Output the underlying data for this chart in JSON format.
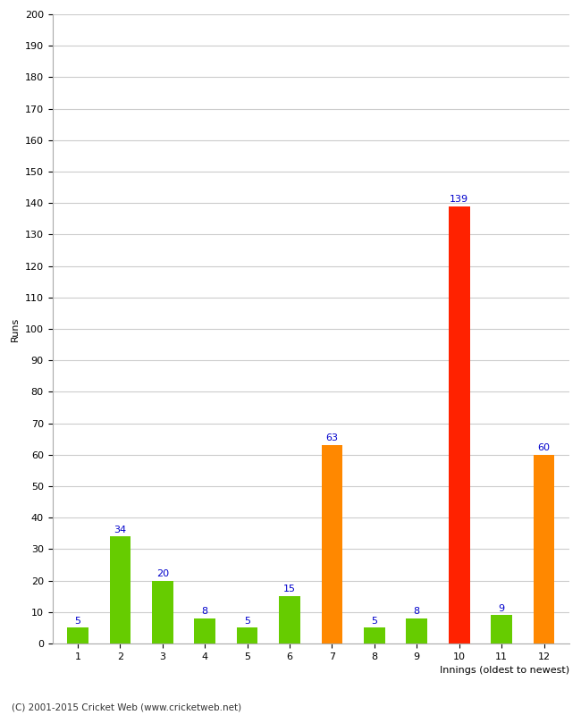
{
  "title": "",
  "xlabel": "Innings (oldest to newest)",
  "ylabel": "Runs",
  "categories": [
    "1",
    "2",
    "3",
    "4",
    "5",
    "6",
    "7",
    "8",
    "9",
    "10",
    "11",
    "12"
  ],
  "values": [
    5,
    34,
    20,
    8,
    5,
    15,
    63,
    5,
    8,
    139,
    9,
    60
  ],
  "bar_colors": [
    "#66cc00",
    "#66cc00",
    "#66cc00",
    "#66cc00",
    "#66cc00",
    "#66cc00",
    "#ff8800",
    "#66cc00",
    "#66cc00",
    "#ff2200",
    "#66cc00",
    "#ff8800"
  ],
  "ylim": [
    0,
    200
  ],
  "yticks": [
    0,
    10,
    20,
    30,
    40,
    50,
    60,
    70,
    80,
    90,
    100,
    110,
    120,
    130,
    140,
    150,
    160,
    170,
    180,
    190,
    200
  ],
  "label_color": "#0000cc",
  "label_fontsize": 8,
  "axis_label_fontsize": 8,
  "tick_fontsize": 8,
  "footer_text": "(C) 2001-2015 Cricket Web (www.cricketweb.net)",
  "background_color": "#ffffff",
  "grid_color": "#cccccc"
}
